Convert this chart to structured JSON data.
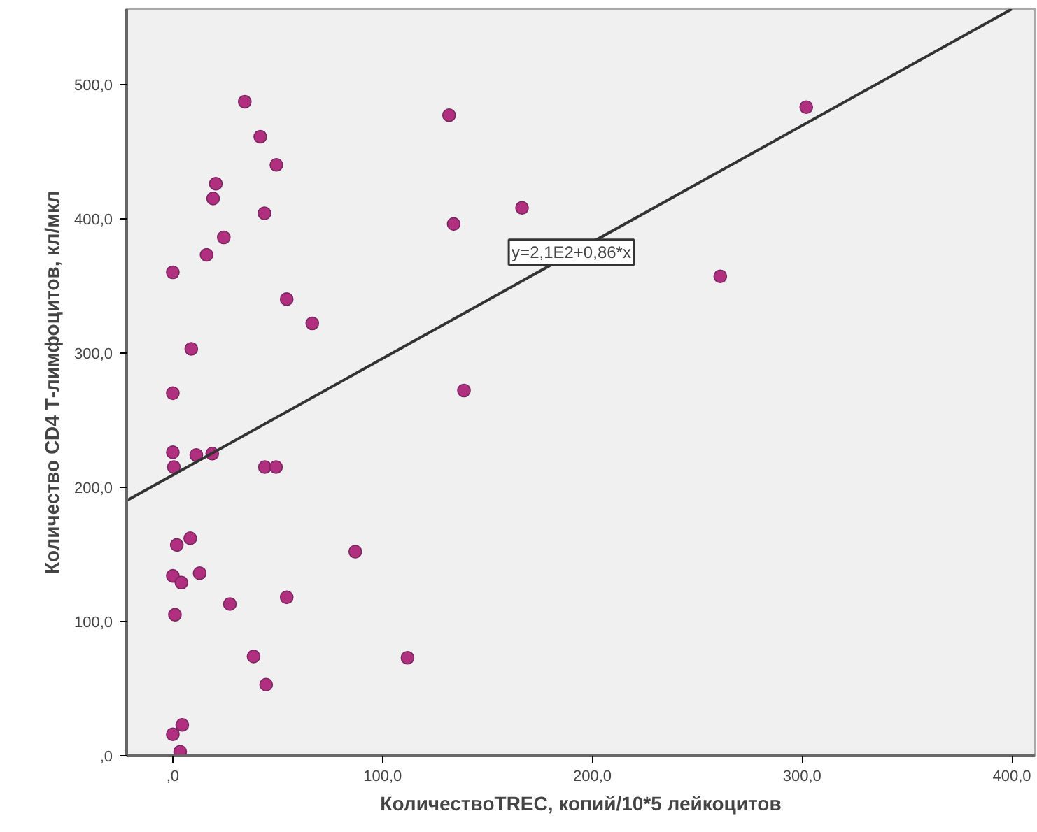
{
  "chart_data": {
    "type": "scatter",
    "xlabel": "КоличествоTREC, копий/10*5 лейкоцитов",
    "ylabel": "Количество CD4 Т-лимфоцитов, кл/мкл",
    "xlim": [
      -22,
      411
    ],
    "ylim": [
      0,
      556
    ],
    "xticks": [
      {
        "value": 0,
        "label": ",0"
      },
      {
        "value": 100,
        "label": "100,0"
      },
      {
        "value": 200,
        "label": "200,0"
      },
      {
        "value": 300,
        "label": "300,0"
      },
      {
        "value": 400,
        "label": "400,0"
      }
    ],
    "yticks": [
      {
        "value": 0,
        "label": ",0"
      },
      {
        "value": 100,
        "label": "100,0"
      },
      {
        "value": 200,
        "label": "200,0"
      },
      {
        "value": 300,
        "label": "300,0"
      },
      {
        "value": 400,
        "label": "400,0"
      },
      {
        "value": 500,
        "label": "500,0"
      }
    ],
    "grid": false,
    "series": [
      {
        "marker": "circle",
        "color": "#b0307f",
        "x": [
          34.3,
          41.7,
          49.4,
          20.5,
          19.2,
          43.7,
          24.3,
          16.1,
          0,
          54.3,
          66.5,
          8.8,
          0,
          0,
          11.2,
          18.8,
          0.5,
          43.9,
          49.2,
          8.3,
          1.9,
          87,
          0,
          12.8,
          4.1,
          54.3,
          27.2,
          1,
          38.5,
          111.9,
          44.5,
          4.5,
          0,
          3.5,
          131.7,
          302,
          166.5,
          133.9,
          261,
          138.8
        ],
        "values": [
          487,
          461,
          440,
          426,
          415,
          404,
          386,
          373,
          360,
          340,
          322,
          303,
          270,
          226,
          224,
          225,
          215,
          215,
          215,
          162,
          157,
          152,
          134,
          136,
          129,
          118,
          113,
          105,
          74,
          73,
          53,
          23,
          16,
          3,
          477,
          483,
          408,
          396,
          357,
          272
        ]
      },
      {
        "type": "line",
        "color": "#333333",
        "x": [
          -22,
          400
        ],
        "values": [
          190,
          556
        ]
      }
    ],
    "annotations": [
      {
        "text": "y=2,1E2+0,86*x",
        "x": 190,
        "y": 375
      }
    ]
  }
}
